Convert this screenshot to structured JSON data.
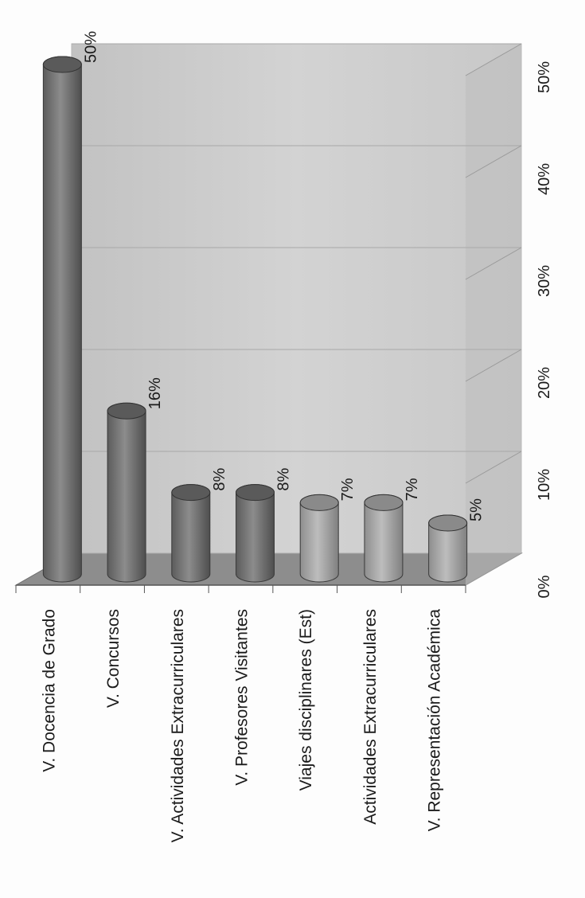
{
  "chart_data": {
    "type": "bar",
    "orientation": "horizontal-3d-cylinder",
    "categories": [
      "V. Docencia de Grado",
      "V. Concursos",
      "V. Actividades Extracurriculares",
      "V. Profesores Visitantes",
      "Viajes disciplinares (Est)",
      "Actividades Extracurriculares",
      "V. Representación Académica"
    ],
    "values": [
      50,
      16,
      8,
      8,
      7,
      7,
      5
    ],
    "data_labels": [
      "50%",
      "16%",
      "8%",
      "8%",
      "7%",
      "7%",
      "5%"
    ],
    "value_ticks": [
      "0%",
      "10%",
      "20%",
      "30%",
      "40%",
      "50%"
    ],
    "xlim": [
      0,
      50
    ],
    "title": "",
    "xlabel": "",
    "ylabel": "",
    "grid": true,
    "legend": "none",
    "colors": {
      "cylinder_dark": "#7a7a7a",
      "cylinder_light": "#a9a9a9",
      "wall": "#cfcfcf",
      "floor": "#8d8d8d"
    }
  }
}
